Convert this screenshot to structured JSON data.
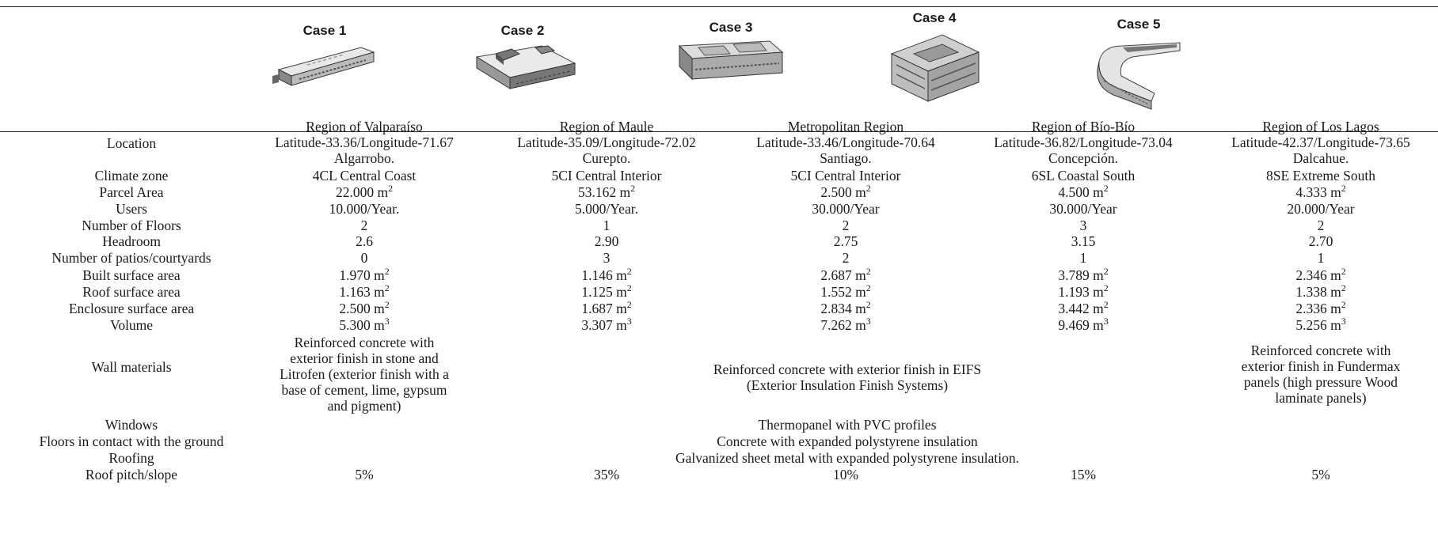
{
  "cases": [
    {
      "label": "Case 1"
    },
    {
      "label": "Case 2"
    },
    {
      "label": "Case 3"
    },
    {
      "label": "Case 4"
    },
    {
      "label": "Case 5"
    }
  ],
  "rows": {
    "location": {
      "label": "Location",
      "values": [
        [
          "Region of Valparaíso",
          "Latitude-33.36/Longitude-71.67",
          "Algarrobo."
        ],
        [
          "Region of Maule",
          "Latitude-35.09/Longitude-72.02",
          "Curepto."
        ],
        [
          "Metropolitan Region",
          "Latitude-33.46/Longitude-70.64",
          "Santiago."
        ],
        [
          "Region of Bío-Bío",
          "Latitude-36.82/Longitude-73.04",
          "Concepción."
        ],
        [
          "Region of Los Lagos",
          "Latitude-42.37/Longitude-73.65",
          "Dalcahue."
        ]
      ]
    },
    "climate": {
      "label": "Climate zone",
      "values": [
        "4CL Central Coast",
        "5CI Central Interior",
        "5CI Central Interior",
        "6SL Coastal South",
        "8SE Extreme South"
      ]
    },
    "parcel": {
      "label": "Parcel Area",
      "unit": "m",
      "exp": "2",
      "values": [
        "22.000",
        "53.162",
        "2.500",
        "4.500",
        "4.333"
      ]
    },
    "users": {
      "label": "Users",
      "values": [
        "10.000/Year.",
        "5.000/Year.",
        "30.000/Year",
        "30.000/Year",
        "20.000/Year"
      ]
    },
    "floors": {
      "label": "Number of Floors",
      "values": [
        "2",
        "1",
        "2",
        "3",
        "2"
      ]
    },
    "headroom": {
      "label": "Headroom",
      "values": [
        "2.6",
        "2.90",
        "2.75",
        "3.15",
        "2.70"
      ]
    },
    "patios": {
      "label": "Number of patios/courtyards",
      "values": [
        "0",
        "3",
        "2",
        "1",
        "1"
      ]
    },
    "built": {
      "label": "Built surface area",
      "unit": "m",
      "exp": "2",
      "values": [
        "1.970",
        "1.146",
        "2.687",
        "3.789",
        "2.346"
      ]
    },
    "roofarea": {
      "label": "Roof surface area",
      "unit": "m",
      "exp": "2",
      "values": [
        "1.163",
        "1.125",
        "1.552",
        "1.193",
        "1.338"
      ]
    },
    "enclosure": {
      "label": "Enclosure surface area",
      "unit": "m",
      "exp": "2",
      "values": [
        "2.500",
        "1.687",
        "2.834",
        "3.442",
        "2.336"
      ]
    },
    "volume": {
      "label": "Volume",
      "unit": "m",
      "exp": "3",
      "values": [
        "5.300",
        "3.307",
        "7.262",
        "9.469",
        "5.256"
      ]
    },
    "walls": {
      "label": "Wall materials",
      "case1": [
        "Reinforced concrete with",
        "exterior finish in stone and",
        "Litrofen (exterior finish with a",
        "base of cement, lime, gypsum",
        "and pigment)"
      ],
      "shared": [
        "Reinforced concrete with exterior finish in EIFS",
        "(Exterior Insulation Finish Systems)"
      ],
      "case5": [
        "Reinforced concrete with",
        "exterior finish in Fundermax",
        "panels (high pressure Wood",
        "laminate panels)"
      ]
    },
    "windows": {
      "label": "Windows",
      "value": "Thermopanel with PVC profiles"
    },
    "groundfloors": {
      "label": "Floors in contact with the ground",
      "value": "Concrete with expanded polystyrene insulation"
    },
    "roofing": {
      "label": "Roofing",
      "value": "Galvanized sheet metal with expanded polystyrene insulation."
    },
    "pitch": {
      "label": "Roof pitch/slope",
      "values": [
        "5%",
        "35%",
        "10%",
        "15%",
        "5%"
      ]
    }
  }
}
